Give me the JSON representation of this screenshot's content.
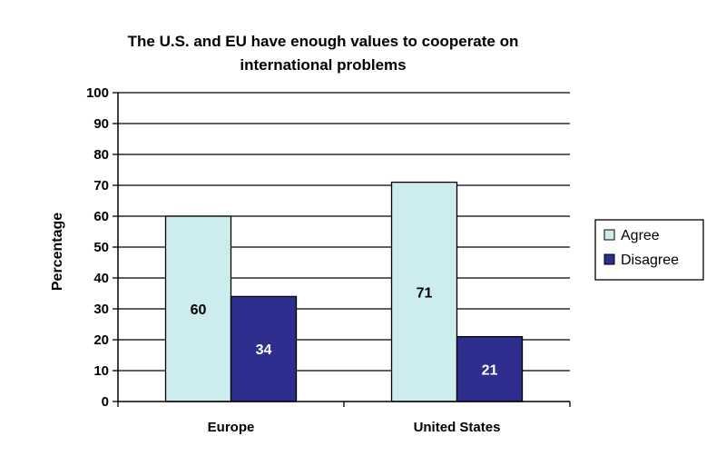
{
  "chart_data": {
    "type": "bar",
    "title_lines": [
      "The U.S. and EU have enough values to cooperate on",
      "international problems"
    ],
    "xlabel": "",
    "ylabel": "Percentage",
    "ylim": [
      0,
      100
    ],
    "yticks": [
      0,
      10,
      20,
      30,
      40,
      50,
      60,
      70,
      80,
      90,
      100
    ],
    "grid": true,
    "legend_position": "right",
    "categories": [
      "Europe",
      "United States"
    ],
    "series": [
      {
        "name": "Agree",
        "values": [
          60,
          71
        ],
        "color": "#cdecee",
        "label_color": "#000000"
      },
      {
        "name": "Disagree",
        "values": [
          34,
          21
        ],
        "color": "#2e2e8e",
        "label_color": "#ffffff"
      }
    ]
  }
}
